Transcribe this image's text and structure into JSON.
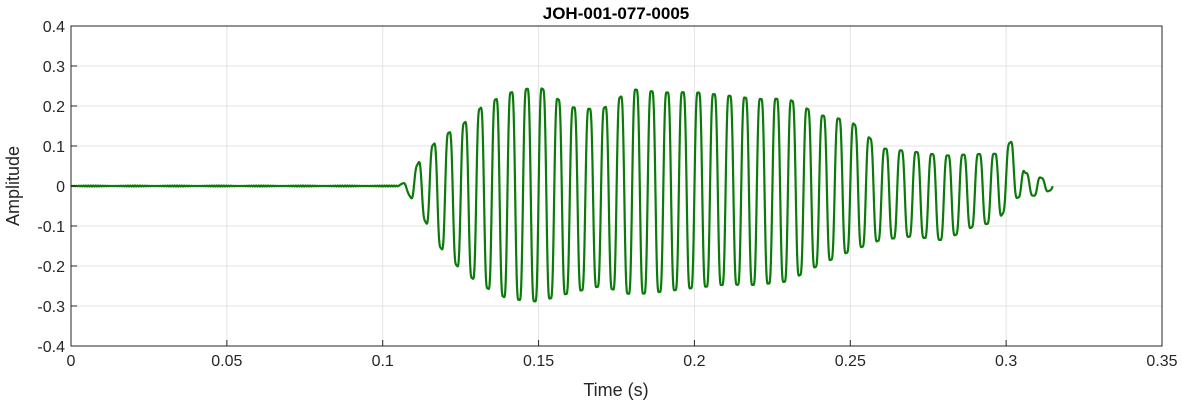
{
  "chart_data": {
    "type": "line",
    "title": "JOH-001-077-0005",
    "xlabel": "Time (s)",
    "ylabel": "Amplitude",
    "xlim": [
      0,
      0.35
    ],
    "ylim": [
      -0.4,
      0.4
    ],
    "xticks": [
      0,
      0.05,
      0.1,
      0.15,
      0.2,
      0.25,
      0.3,
      0.35
    ],
    "xtick_labels": [
      "0",
      "0.05",
      "0.1",
      "0.15",
      "0.2",
      "0.25",
      "0.3",
      "0.35"
    ],
    "yticks": [
      -0.4,
      -0.3,
      -0.2,
      -0.1,
      0,
      0.1,
      0.2,
      0.3,
      0.4
    ],
    "ytick_labels": [
      "-0.4",
      "-0.3",
      "-0.2",
      "-0.1",
      "0",
      "0.1",
      "0.2",
      "0.3",
      "0.4"
    ],
    "grid": true,
    "series": [
      {
        "color": "#0b7a0b",
        "envelope": {
          "t": [
            0.105,
            0.108,
            0.112,
            0.118,
            0.125,
            0.132,
            0.14,
            0.15,
            0.16,
            0.17,
            0.18,
            0.19,
            0.2,
            0.21,
            0.22,
            0.23,
            0.24,
            0.25,
            0.26,
            0.27,
            0.28,
            0.29,
            0.297,
            0.302,
            0.306,
            0.31,
            0.315
          ],
          "upper": [
            0.002,
            0.015,
            0.08,
            0.15,
            0.19,
            0.25,
            0.29,
            0.31,
            0.25,
            0.24,
            0.3,
            0.29,
            0.29,
            0.28,
            0.27,
            0.27,
            0.22,
            0.2,
            0.12,
            0.11,
            0.1,
            0.1,
            0.1,
            0.13,
            0.04,
            0.03,
            0.01
          ],
          "lower": [
            -0.002,
            -0.02,
            -0.08,
            -0.18,
            -0.25,
            -0.3,
            -0.34,
            -0.35,
            -0.32,
            -0.3,
            -0.33,
            -0.32,
            -0.31,
            -0.3,
            -0.3,
            -0.29,
            -0.24,
            -0.2,
            -0.16,
            -0.15,
            -0.16,
            -0.12,
            -0.11,
            -0.05,
            -0.03,
            -0.03,
            -0.01
          ]
        },
        "fundamental_hz": 200,
        "signal_start": 0,
        "signal_end": 0.315
      }
    ]
  }
}
